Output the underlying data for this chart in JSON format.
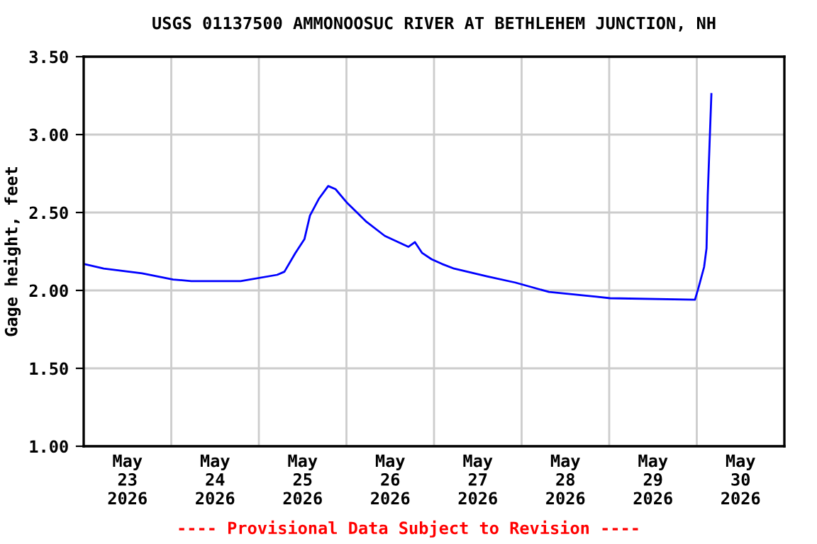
{
  "chart_data": {
    "type": "line",
    "title": "USGS 01137500 AMMONOOSUC RIVER AT BETHLEHEM JUNCTION, NH",
    "ylabel": "Gage height, feet",
    "annotations": [
      "---- Provisional Data Subject to Revision ----"
    ],
    "x": [
      "2026-05-23T00:00",
      "2026-05-23T05:30",
      "2026-05-23T16:00",
      "2026-05-24T00:30",
      "2026-05-24T05:30",
      "2026-05-24T19:00",
      "2026-05-25T05:00",
      "2026-05-25T07:00",
      "2026-05-25T10:00",
      "2026-05-25T12:30",
      "2026-05-25T14:00",
      "2026-05-25T16:30",
      "2026-05-25T19:00",
      "2026-05-25T21:00",
      "2026-05-26T00:15",
      "2026-05-26T05:30",
      "2026-05-26T10:30",
      "2026-05-26T17:00",
      "2026-05-26T18:45",
      "2026-05-26T20:45",
      "2026-05-26T23:20",
      "2026-05-27T02:10",
      "2026-05-27T05:30",
      "2026-05-27T14:30",
      "2026-05-27T22:20",
      "2026-05-28T07:30",
      "2026-05-28T20:30",
      "2026-05-29T00:15",
      "2026-05-29T23:30",
      "2026-05-30T00:30",
      "2026-05-30T02:00",
      "2026-05-30T02:40",
      "2026-05-30T03:00",
      "2026-05-30T03:30",
      "2026-05-30T04:00"
    ],
    "series": [
      {
        "color": "#0000ff",
        "values": [
          2.17,
          2.14,
          2.11,
          2.07,
          2.06,
          2.06,
          2.1,
          2.12,
          2.24,
          2.33,
          2.48,
          2.59,
          2.67,
          2.65,
          2.56,
          2.44,
          2.35,
          2.28,
          2.31,
          2.24,
          2.2,
          2.17,
          2.14,
          2.09,
          2.05,
          1.99,
          1.96,
          1.95,
          1.94,
          2.02,
          2.15,
          2.27,
          2.61,
          2.94,
          3.26
        ]
      }
    ],
    "xlim": [
      "2026-05-23T00:00",
      "2026-05-31T00:00"
    ],
    "xticks": [
      {
        "value": "2026-05-23T12:00",
        "label": "May\n23\n2026"
      },
      {
        "value": "2026-05-24T12:00",
        "label": "May\n24\n2026"
      },
      {
        "value": "2026-05-25T12:00",
        "label": "May\n25\n2026"
      },
      {
        "value": "2026-05-26T12:00",
        "label": "May\n26\n2026"
      },
      {
        "value": "2026-05-27T12:00",
        "label": "May\n27\n2026"
      },
      {
        "value": "2026-05-28T12:00",
        "label": "May\n28\n2026"
      },
      {
        "value": "2026-05-29T12:00",
        "label": "May\n29\n2026"
      },
      {
        "value": "2026-05-30T12:00",
        "label": "May\n30\n2026"
      }
    ],
    "ylim": [
      1.0,
      3.5
    ],
    "yticks": [
      {
        "value": 1.0,
        "label": "1.00"
      },
      {
        "value": 1.5,
        "label": "1.50"
      },
      {
        "value": 2.0,
        "label": "2.00"
      },
      {
        "value": 2.5,
        "label": "2.50"
      },
      {
        "value": 3.0,
        "label": "3.00"
      },
      {
        "value": 3.5,
        "label": "3.50"
      }
    ],
    "grid": true,
    "legend": false,
    "marker": "none",
    "line_style": "solid"
  }
}
